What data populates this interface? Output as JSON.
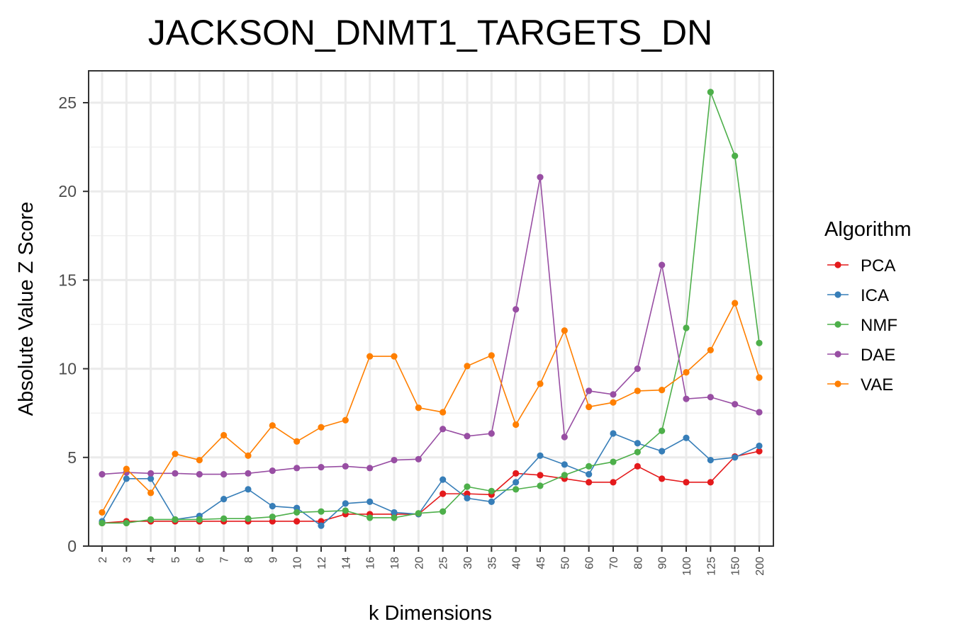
{
  "chart_data": {
    "type": "line",
    "title": "JACKSON_DNMT1_TARGETS_DN",
    "xlabel": "k Dimensions",
    "ylabel": "Absolute Value Z Score",
    "categories": [
      "2",
      "3",
      "4",
      "5",
      "6",
      "7",
      "8",
      "9",
      "10",
      "12",
      "14",
      "16",
      "18",
      "20",
      "25",
      "30",
      "35",
      "40",
      "45",
      "50",
      "60",
      "70",
      "80",
      "90",
      "100",
      "125",
      "150",
      "200"
    ],
    "ylim": [
      0,
      26.5
    ],
    "yticks": [
      0,
      5,
      10,
      15,
      20,
      25
    ],
    "grid": true,
    "legend": {
      "title": "Algorithm",
      "placement": "right"
    },
    "series": [
      {
        "name": "PCA",
        "color": "#e41a1c",
        "values": [
          1.3,
          1.4,
          1.4,
          1.4,
          1.4,
          1.4,
          1.4,
          1.4,
          1.4,
          1.4,
          1.8,
          1.8,
          1.8,
          1.8,
          2.95,
          2.95,
          2.9,
          4.1,
          4.0,
          3.8,
          3.6,
          3.6,
          4.5,
          3.8,
          3.6,
          3.6,
          5.05,
          5.35
        ]
      },
      {
        "name": "ICA",
        "color": "#377eb8",
        "values": [
          1.4,
          3.8,
          3.8,
          1.5,
          1.7,
          2.65,
          3.2,
          2.25,
          2.15,
          1.15,
          2.4,
          2.5,
          1.9,
          1.8,
          3.75,
          2.7,
          2.5,
          3.6,
          5.1,
          4.6,
          4.05,
          6.35,
          5.8,
          5.35,
          6.1,
          4.85,
          5.0,
          5.65
        ]
      },
      {
        "name": "NMF",
        "color": "#4daf4a",
        "values": [
          1.3,
          1.3,
          1.5,
          1.5,
          1.5,
          1.55,
          1.55,
          1.65,
          1.9,
          1.95,
          2.0,
          1.6,
          1.6,
          1.85,
          1.95,
          3.35,
          3.1,
          3.2,
          3.4,
          4.0,
          4.5,
          4.75,
          5.3,
          6.5,
          12.3,
          25.6,
          22.0,
          11.45
        ]
      },
      {
        "name": "DAE",
        "color": "#984ea3",
        "values": [
          4.05,
          4.15,
          4.1,
          4.1,
          4.05,
          4.05,
          4.1,
          4.25,
          4.4,
          4.45,
          4.5,
          4.4,
          4.85,
          4.9,
          6.6,
          6.2,
          6.35,
          13.35,
          20.8,
          6.15,
          8.75,
          8.55,
          10.0,
          15.85,
          8.3,
          8.4,
          8.0,
          7.55
        ]
      },
      {
        "name": "VAE",
        "color": "#ff7f00",
        "values": [
          1.9,
          4.35,
          3.0,
          5.2,
          4.85,
          6.25,
          5.1,
          6.8,
          5.9,
          6.7,
          7.1,
          10.7,
          10.7,
          7.8,
          7.55,
          10.15,
          10.75,
          6.85,
          9.15,
          12.15,
          7.85,
          8.1,
          8.75,
          8.8,
          9.8,
          11.05,
          13.7,
          9.5
        ]
      }
    ]
  }
}
